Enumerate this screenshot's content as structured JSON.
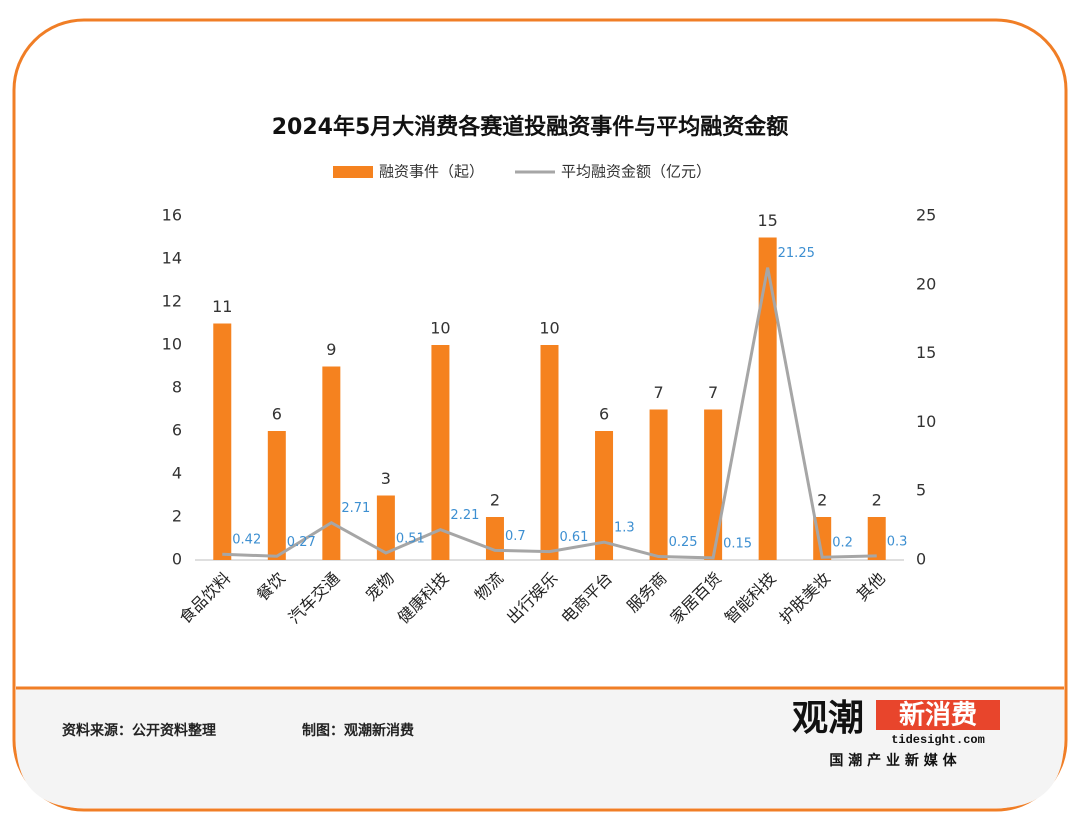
{
  "chart_data": {
    "type": "bar",
    "title": "2024年5月大消费各赛道投融资事件与平均融资金额",
    "categories": [
      "食品饮料",
      "餐饮",
      "汽车交通",
      "宠物",
      "健康科技",
      "物流",
      "出行娱乐",
      "电商平台",
      "服务商",
      "家居百货",
      "智能科技",
      "护肤美妆",
      "其他"
    ],
    "series": [
      {
        "name": "融资事件（起）",
        "type": "bar",
        "color": "#f5821f",
        "values": [
          11,
          6,
          9,
          3,
          10,
          2,
          10,
          6,
          7,
          7,
          15,
          2,
          2
        ]
      },
      {
        "name": "平均融资金额（亿元）",
        "type": "line",
        "axis": "y2",
        "color": "#a6a6a6",
        "label_color": "#3d8fd1",
        "values": [
          0.42,
          0.27,
          2.71,
          0.51,
          2.21,
          0.7,
          0.61,
          1.3,
          0.25,
          0.15,
          21.25,
          0.2,
          0.3
        ]
      }
    ],
    "ylim": [
      0,
      16
    ],
    "yticks": [
      0,
      2,
      4,
      6,
      8,
      10,
      12,
      14,
      16
    ],
    "y2lim": [
      0,
      25
    ],
    "y2ticks": [
      0,
      5,
      10,
      15,
      20,
      25
    ],
    "legend": "top"
  },
  "footer": {
    "source": "资料来源：公开资料整理",
    "credit": "制图：观潮新消费"
  },
  "logo": {
    "brand": "观潮",
    "highlight": "新消费",
    "site": "tidesight.com",
    "slogan": "国 潮 产 业 新 媒 体"
  }
}
